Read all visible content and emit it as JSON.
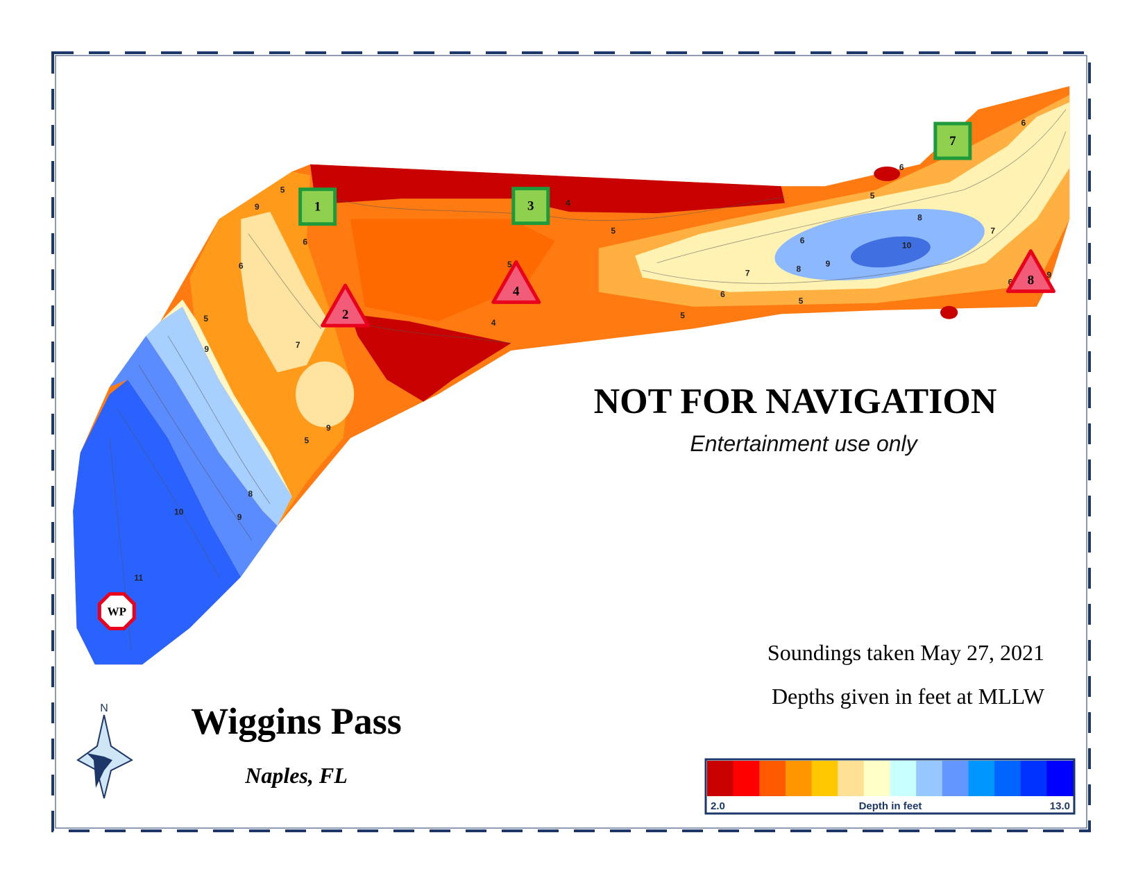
{
  "title": "Wiggins Pass",
  "subtitle": "Naples, FL",
  "warning": "NOT FOR NAVIGATION",
  "disclaimer": "Entertainment use only",
  "notes": [
    "Soundings taken May 27, 2021",
    "Depths given in feet at MLLW"
  ],
  "compass": "N",
  "legend": {
    "min_label": "2.0",
    "title": "Depth in feet",
    "max_label": "13.0",
    "colors": [
      "#c80000",
      "#ff0000",
      "#ff5a00",
      "#ff9600",
      "#ffc800",
      "#ffe196",
      "#ffffc8",
      "#c8ffff",
      "#96c8ff",
      "#6496ff",
      "#0096ff",
      "#0064ff",
      "#0032ff",
      "#0000ff"
    ]
  },
  "markers": [
    {
      "label": "1",
      "shape": "square"
    },
    {
      "label": "3",
      "shape": "square"
    },
    {
      "label": "7",
      "shape": "square"
    },
    {
      "label": "2",
      "shape": "triangle"
    },
    {
      "label": "4",
      "shape": "triangle"
    },
    {
      "label": "8",
      "shape": "triangle"
    },
    {
      "label": "WP",
      "shape": "octagon"
    }
  ],
  "contour_labels": [
    "5",
    "6",
    "9",
    "6",
    "5",
    "9",
    "7",
    "9",
    "5",
    "8",
    "9",
    "10",
    "11",
    "4",
    "5",
    "4",
    "5",
    "6",
    "7",
    "8",
    "6",
    "9",
    "10",
    "8",
    "5",
    "6",
    "5",
    "5",
    "6",
    "9",
    "6",
    "7"
  ]
}
